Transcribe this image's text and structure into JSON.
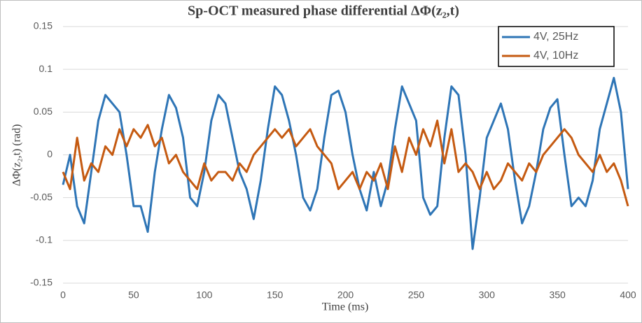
{
  "chart_data": {
    "type": "line",
    "title": "Sp-OCT measured phase differential ΔΦ(z₂,t)",
    "x_label": "Time (ms)",
    "y_label": "ΔΦ(z₂,t) (rad)",
    "x": [
      0,
      5,
      10,
      15,
      20,
      25,
      30,
      35,
      40,
      45,
      50,
      55,
      60,
      65,
      70,
      75,
      80,
      85,
      90,
      95,
      100,
      105,
      110,
      115,
      120,
      125,
      130,
      135,
      140,
      145,
      150,
      155,
      160,
      165,
      170,
      175,
      180,
      185,
      190,
      195,
      200,
      205,
      210,
      215,
      220,
      225,
      230,
      235,
      240,
      245,
      250,
      255,
      260,
      265,
      270,
      275,
      280,
      285,
      290,
      295,
      300,
      305,
      310,
      315,
      320,
      325,
      330,
      335,
      340,
      345,
      350,
      355,
      360,
      365,
      370,
      375,
      380,
      385,
      390,
      395,
      400
    ],
    "series": [
      {
        "name": "4V, 25Hz",
        "color": "#2e75b6",
        "values": [
          -0.035,
          0.0,
          -0.06,
          -0.08,
          -0.02,
          0.04,
          0.07,
          0.06,
          0.05,
          0.0,
          -0.06,
          -0.06,
          -0.09,
          -0.02,
          0.03,
          0.07,
          0.055,
          0.02,
          -0.05,
          -0.06,
          -0.02,
          0.04,
          0.07,
          0.06,
          0.02,
          -0.02,
          -0.04,
          -0.075,
          -0.03,
          0.03,
          0.08,
          0.07,
          0.04,
          0.0,
          -0.05,
          -0.065,
          -0.04,
          0.02,
          0.07,
          0.075,
          0.05,
          0.0,
          -0.04,
          -0.065,
          -0.02,
          -0.06,
          -0.03,
          0.03,
          0.08,
          0.06,
          0.04,
          -0.05,
          -0.07,
          -0.06,
          0.02,
          0.08,
          0.07,
          0.0,
          -0.11,
          -0.05,
          0.02,
          0.04,
          0.06,
          0.03,
          -0.03,
          -0.08,
          -0.06,
          -0.02,
          0.03,
          0.055,
          0.065,
          0.0,
          -0.06,
          -0.05,
          -0.06,
          -0.03,
          0.03,
          0.06,
          0.09,
          0.05,
          -0.04
        ]
      },
      {
        "name": "4V, 10Hz",
        "color": "#c55a11",
        "values": [
          -0.02,
          -0.04,
          0.02,
          -0.03,
          -0.01,
          -0.02,
          0.01,
          0.0,
          0.03,
          0.01,
          0.03,
          0.02,
          0.035,
          0.01,
          0.02,
          -0.01,
          0.0,
          -0.02,
          -0.03,
          -0.04,
          -0.01,
          -0.03,
          -0.02,
          -0.02,
          -0.03,
          -0.01,
          -0.02,
          0.0,
          0.01,
          0.02,
          0.03,
          0.02,
          0.03,
          0.01,
          0.02,
          0.03,
          0.01,
          0.0,
          -0.01,
          -0.04,
          -0.03,
          -0.02,
          -0.04,
          -0.02,
          -0.03,
          -0.01,
          -0.04,
          0.01,
          -0.02,
          0.02,
          0.0,
          0.03,
          0.01,
          0.04,
          -0.01,
          0.03,
          -0.02,
          -0.01,
          -0.02,
          -0.04,
          -0.02,
          -0.04,
          -0.03,
          -0.01,
          -0.02,
          -0.03,
          -0.01,
          -0.02,
          0.0,
          0.01,
          0.02,
          0.03,
          0.02,
          0.0,
          -0.01,
          -0.02,
          0.0,
          -0.02,
          -0.01,
          -0.03,
          -0.06
        ]
      }
    ],
    "xlim": [
      0,
      400
    ],
    "xticks": [
      0,
      50,
      100,
      150,
      200,
      250,
      300,
      350,
      400
    ],
    "ylim": [
      -0.15,
      0.15
    ],
    "yticks": [
      -0.15,
      -0.1,
      -0.05,
      0,
      0.05,
      0.1,
      0.15
    ],
    "grid": true,
    "legend": "top-right"
  }
}
